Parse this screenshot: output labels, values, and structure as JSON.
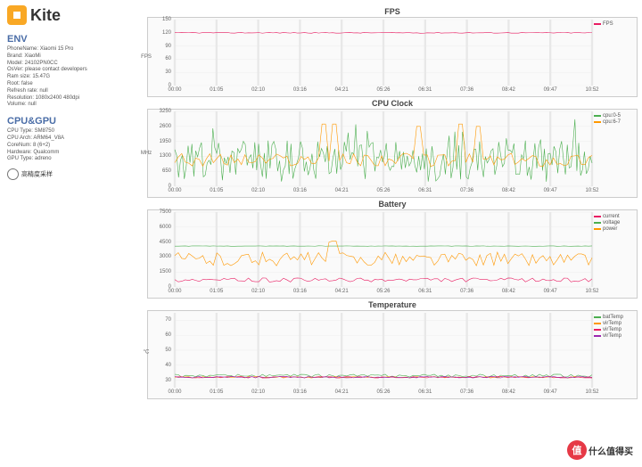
{
  "logo": {
    "text": "Kite"
  },
  "env": {
    "title": "ENV",
    "lines": [
      "PhoneName: Xiaomi 15 Pro",
      "Brand: XiaoMi",
      "Model: 24102PN0CC",
      "OsVer: please contact developers",
      "Ram size: 15.47G",
      "Root: false",
      "Refresh rate: null",
      "Resolution: 1080x2400 480dpi",
      "Volume: null"
    ]
  },
  "cpugpu": {
    "title": "CPU&GPU",
    "lines": [
      "CPU Type: SM8750",
      "CPU Arch: ARM64_V8A",
      "CoreNum: 8 (6+2)",
      "Hardware: Qualcomm",
      "GPU Type: adreno"
    ]
  },
  "radio_label": "高精度采样",
  "xticks": [
    "00:00",
    "01:05",
    "02:10",
    "03:16",
    "04:21",
    "05:26",
    "06:31",
    "07:36",
    "08:42",
    "09:47",
    "10:52"
  ],
  "charts": {
    "fps": {
      "title": "FPS",
      "ylabel": "FPS",
      "ylim": [
        0,
        150
      ],
      "yticks": [
        0,
        30,
        60,
        90,
        120,
        150
      ],
      "grid_color": "#e8e8e8",
      "series": [
        {
          "name": "FPS",
          "color": "#e91e63",
          "flat": 120,
          "noise": 1
        }
      ]
    },
    "cpu": {
      "title": "CPU Clock",
      "ylabel": "MHz",
      "ylim": [
        0,
        3250
      ],
      "yticks": [
        0,
        650,
        1300,
        1950,
        2600,
        3250
      ],
      "series": [
        {
          "name": "cpu:0-5",
          "color": "#4caf50",
          "base": 1100,
          "noise": 900,
          "spiky": true
        },
        {
          "name": "cpu:6-7",
          "color": "#ff9800",
          "base": 1150,
          "noise": 300,
          "spikes": [
            [
              0.35,
              2700
            ],
            [
              0.38,
              2700
            ],
            [
              0.58,
              2600
            ],
            [
              0.68,
              2700
            ],
            [
              0.72,
              2600
            ]
          ]
        }
      ]
    },
    "battery": {
      "title": "Battery",
      "ylabel": "",
      "ylim": [
        0,
        7500
      ],
      "yticks": [
        0,
        1500,
        3000,
        4500,
        6000,
        7500
      ],
      "series": [
        {
          "name": "current",
          "color": "#e91e63",
          "base": 700,
          "noise": 200
        },
        {
          "name": "voltage",
          "color": "#4caf50",
          "flat": 4100,
          "noise": 20
        },
        {
          "name": "power",
          "color": "#ff9800",
          "base": 2800,
          "noise": 700,
          "spikes": [
            [
              0.37,
              4500
            ],
            [
              0.38,
              4600
            ]
          ]
        }
      ]
    },
    "temp": {
      "title": "Temperature",
      "ylabel": "°C",
      "ylim": [
        25,
        75
      ],
      "yticks": [
        30,
        40,
        50,
        60,
        70
      ],
      "series": [
        {
          "name": "batTemp",
          "color": "#4caf50",
          "flat": 33,
          "noise": 1
        },
        {
          "name": "virTemp",
          "color": "#ff9800",
          "flat": 32,
          "noise": 0.5
        },
        {
          "name": "virTemp",
          "color": "#e91e63",
          "flat": 32,
          "noise": 0.5
        },
        {
          "name": "virTemp",
          "color": "#9c27b0",
          "flat": 32,
          "noise": 0.5
        }
      ]
    }
  },
  "watermark": {
    "circle": "值",
    "text": "什么值得买"
  }
}
